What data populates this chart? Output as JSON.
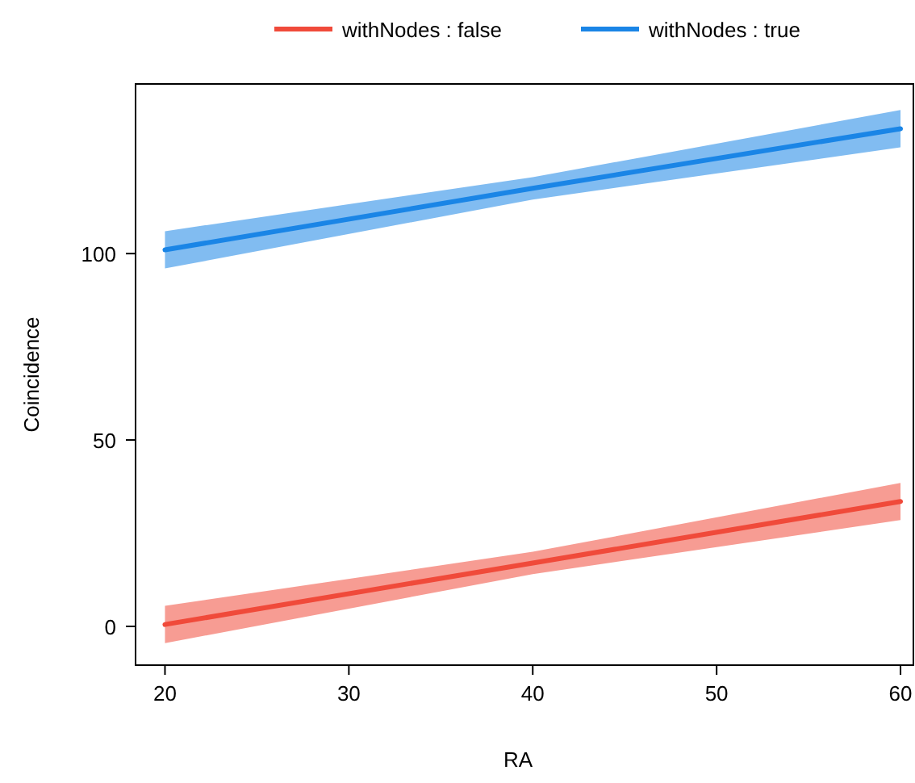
{
  "chart_data": {
    "type": "line",
    "xlabel": "RA",
    "ylabel": "Coincidence",
    "x": [
      20,
      40,
      60
    ],
    "series": [
      {
        "name": "withNodes : false",
        "color": "#f04a3a",
        "values": [
          0.5,
          17,
          33.5
        ],
        "lower": [
          -4.5,
          14,
          28.5
        ],
        "upper": [
          5.5,
          20,
          38.5
        ]
      },
      {
        "name": "withNodes : true",
        "color": "#1a85e6",
        "values": [
          101,
          117.5,
          133.5
        ],
        "lower": [
          96,
          114.5,
          128.5
        ],
        "upper": [
          106,
          120.5,
          138.5
        ]
      }
    ],
    "xlim": [
      18.4,
      60.7
    ],
    "ylim": [
      -10.4,
      145.5
    ],
    "xticks": [
      20,
      30,
      40,
      50,
      60
    ],
    "yticks": [
      0,
      50,
      100
    ],
    "grid": false,
    "legend": "top",
    "line_style": "solid",
    "marker": "none"
  }
}
